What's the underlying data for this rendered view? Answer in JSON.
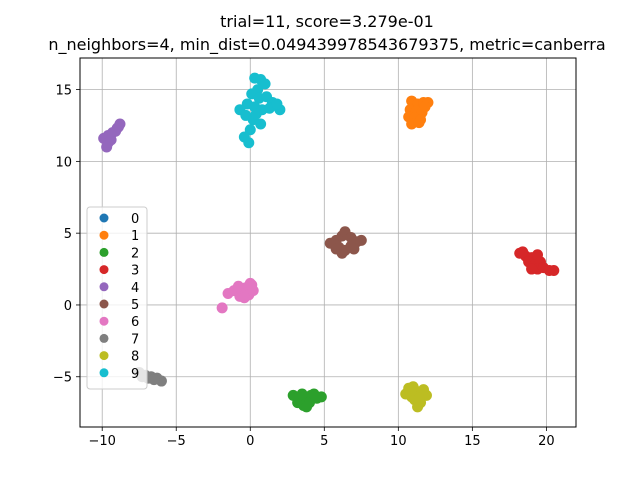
{
  "chart_data": {
    "type": "scatter",
    "title": "trial=11, score=3.279e-01",
    "subtitle": "n_neighbors=4, min_dist=0.049439978543679375, metric=canberra",
    "xlabel": "",
    "ylabel": "",
    "xlim": [
      -11.5,
      22.0
    ],
    "ylim": [
      -8.5,
      17.2
    ],
    "xticks": [
      -10,
      -5,
      0,
      5,
      10,
      15,
      20
    ],
    "yticks": [
      -5,
      0,
      5,
      10,
      15
    ],
    "grid": true,
    "legend": {
      "placement": "center-left",
      "entries": [
        "0",
        "1",
        "2",
        "3",
        "4",
        "5",
        "6",
        "7",
        "8",
        "9"
      ]
    },
    "series": [
      {
        "name": "0",
        "color": "#1f77b4",
        "points": []
      },
      {
        "name": "1",
        "color": "#ff7f0e",
        "points": [
          [
            10.9,
            14.2
          ],
          [
            11.3,
            14.0
          ],
          [
            11.7,
            14.1
          ],
          [
            10.8,
            13.6
          ],
          [
            11.2,
            13.5
          ],
          [
            11.6,
            13.4
          ],
          [
            10.7,
            13.1
          ],
          [
            11.1,
            13.0
          ],
          [
            11.5,
            12.9
          ],
          [
            10.9,
            12.6
          ],
          [
            11.4,
            12.7
          ],
          [
            12.0,
            14.1
          ],
          [
            11.8,
            13.8
          ]
        ]
      },
      {
        "name": "2",
        "color": "#2ca02c",
        "points": [
          [
            2.9,
            -6.3
          ],
          [
            3.3,
            -6.4
          ],
          [
            3.7,
            -6.5
          ],
          [
            4.1,
            -6.3
          ],
          [
            4.5,
            -6.5
          ],
          [
            4.8,
            -6.4
          ],
          [
            3.2,
            -6.8
          ],
          [
            3.6,
            -7.0
          ],
          [
            4.0,
            -6.8
          ],
          [
            3.8,
            -7.1
          ],
          [
            4.3,
            -6.2
          ],
          [
            3.5,
            -6.2
          ]
        ]
      },
      {
        "name": "3",
        "color": "#d62728",
        "points": [
          [
            18.2,
            3.6
          ],
          [
            18.6,
            3.4
          ],
          [
            19.0,
            3.3
          ],
          [
            19.4,
            3.5
          ],
          [
            18.8,
            3.0
          ],
          [
            19.2,
            2.8
          ],
          [
            19.6,
            3.0
          ],
          [
            19.4,
            2.5
          ],
          [
            19.8,
            2.6
          ],
          [
            20.2,
            2.4
          ],
          [
            20.5,
            2.4
          ],
          [
            19.0,
            2.5
          ],
          [
            18.4,
            3.7
          ]
        ]
      },
      {
        "name": "4",
        "color": "#9467bd",
        "points": [
          [
            -9.9,
            11.6
          ],
          [
            -9.6,
            11.8
          ],
          [
            -9.3,
            12.0
          ],
          [
            -9.0,
            12.3
          ],
          [
            -8.8,
            12.6
          ],
          [
            -9.6,
            11.3
          ],
          [
            -9.4,
            11.5
          ],
          [
            -9.7,
            11.0
          ],
          [
            -9.1,
            12.1
          ],
          [
            -8.9,
            12.4
          ]
        ]
      },
      {
        "name": "5",
        "color": "#8c564b",
        "points": [
          [
            5.4,
            4.3
          ],
          [
            5.8,
            4.5
          ],
          [
            6.2,
            4.8
          ],
          [
            6.4,
            5.1
          ],
          [
            6.8,
            4.7
          ],
          [
            7.2,
            4.4
          ],
          [
            7.5,
            4.5
          ],
          [
            6.0,
            4.0
          ],
          [
            6.4,
            3.8
          ],
          [
            6.8,
            4.1
          ],
          [
            7.0,
            3.9
          ],
          [
            6.2,
            3.6
          ],
          [
            5.8,
            3.9
          ]
        ]
      },
      {
        "name": "6",
        "color": "#e377c2",
        "points": [
          [
            -1.9,
            -0.2
          ],
          [
            -1.5,
            0.8
          ],
          [
            -1.1,
            1.0
          ],
          [
            -0.7,
            0.6
          ],
          [
            -0.3,
            1.2
          ],
          [
            0.1,
            1.4
          ],
          [
            -0.5,
            0.9
          ],
          [
            -0.1,
            0.7
          ],
          [
            0.2,
            1.0
          ],
          [
            -0.8,
            1.3
          ],
          [
            -0.4,
            0.5
          ],
          [
            0.0,
            1.5
          ]
        ]
      },
      {
        "name": "7",
        "color": "#7f7f7f",
        "points": [
          [
            -7.5,
            -4.7
          ],
          [
            -7.1,
            -4.9
          ],
          [
            -6.7,
            -5.0
          ],
          [
            -6.3,
            -5.1
          ],
          [
            -6.0,
            -5.3
          ],
          [
            -7.3,
            -5.0
          ],
          [
            -6.9,
            -5.1
          ],
          [
            -6.5,
            -5.2
          ]
        ]
      },
      {
        "name": "8",
        "color": "#bcbd22",
        "points": [
          [
            10.5,
            -6.2
          ],
          [
            10.9,
            -6.4
          ],
          [
            11.2,
            -6.0
          ],
          [
            11.6,
            -6.1
          ],
          [
            11.9,
            -6.3
          ],
          [
            11.1,
            -6.6
          ],
          [
            11.5,
            -6.8
          ],
          [
            11.3,
            -7.1
          ],
          [
            10.7,
            -5.8
          ],
          [
            11.0,
            -5.7
          ],
          [
            11.7,
            -5.9
          ],
          [
            11.4,
            -6.5
          ]
        ]
      },
      {
        "name": "9",
        "color": "#17becf",
        "points": [
          [
            0.3,
            15.8
          ],
          [
            0.7,
            15.7
          ],
          [
            1.0,
            15.4
          ],
          [
            0.5,
            15.0
          ],
          [
            0.1,
            14.7
          ],
          [
            0.6,
            14.4
          ],
          [
            1.1,
            14.5
          ],
          [
            1.5,
            14.1
          ],
          [
            -0.2,
            14.0
          ],
          [
            0.3,
            13.8
          ],
          [
            0.8,
            13.6
          ],
          [
            1.3,
            13.7
          ],
          [
            2.0,
            13.6
          ],
          [
            -0.7,
            13.6
          ],
          [
            -0.3,
            13.2
          ],
          [
            0.2,
            12.9
          ],
          [
            0.7,
            12.6
          ],
          [
            0.0,
            12.2
          ],
          [
            -0.1,
            11.3
          ],
          [
            -0.4,
            11.7
          ],
          [
            0.4,
            13.3
          ],
          [
            1.8,
            14.0
          ]
        ]
      }
    ]
  }
}
